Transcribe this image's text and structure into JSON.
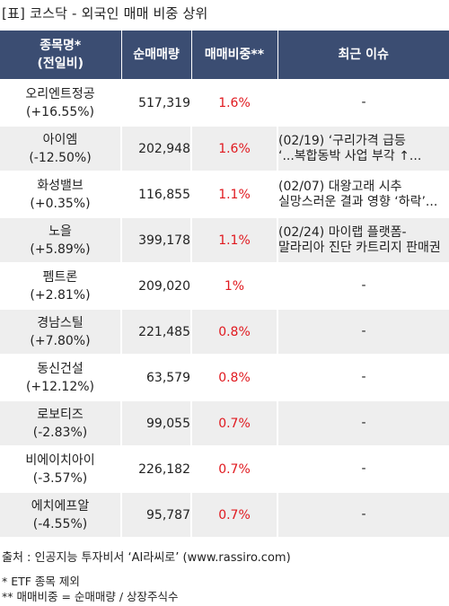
{
  "title": "[표] 코스닥 - 외국인 매매 비중 상위",
  "headers": {
    "name_line1": "종목명*",
    "name_line2": "(전일비)",
    "volume": "순매매량",
    "ratio": "매매비중**",
    "issue": "최근 이슈"
  },
  "rows": [
    {
      "name": "오리엔트정공",
      "change": "(+16.55%)",
      "volume": "517,319",
      "ratio": "1.6%",
      "issue": [
        "-"
      ]
    },
    {
      "name": "아이엠",
      "change": "(-12.50%)",
      "volume": "202,948",
      "ratio": "1.6%",
      "issue": [
        "(02/19) ‘구리가격 급등",
        "‘...복합동박 사업 부각 ↑..."
      ]
    },
    {
      "name": "화성밸브",
      "change": "(+0.35%)",
      "volume": "116,855",
      "ratio": "1.1%",
      "issue": [
        "(02/07) 대왕고래 시추",
        "실망스러운 결과 영향 ‘하락’..."
      ]
    },
    {
      "name": "노을",
      "change": "(+5.89%)",
      "volume": "399,178",
      "ratio": "1.1%",
      "issue": [
        "(02/24) 마이랩 플랫폼-",
        "말라리아 진단 카트리지 판매권"
      ]
    },
    {
      "name": "펨트론",
      "change": "(+2.81%)",
      "volume": "209,020",
      "ratio": "1%",
      "issue": [
        "-"
      ]
    },
    {
      "name": "경남스틸",
      "change": "(+7.80%)",
      "volume": "221,485",
      "ratio": "0.8%",
      "issue": [
        "-"
      ]
    },
    {
      "name": "동신건설",
      "change": "(+12.12%)",
      "volume": "63,579",
      "ratio": "0.8%",
      "issue": [
        "-"
      ]
    },
    {
      "name": "로보티즈",
      "change": "(-2.83%)",
      "volume": "99,055",
      "ratio": "0.7%",
      "issue": [
        "-"
      ]
    },
    {
      "name": "비에이치아이",
      "change": "(-3.57%)",
      "volume": "226,182",
      "ratio": "0.7%",
      "issue": [
        "-"
      ]
    },
    {
      "name": "에치에프알",
      "change": "(-4.55%)",
      "volume": "95,787",
      "ratio": "0.7%",
      "issue": [
        "-"
      ]
    }
  ],
  "footer": {
    "source": "출처 : 인공지능 투자비서 ‘AI라씨로’ (www.rassiro.com)",
    "note1": "* ETF 종목 제외",
    "note2": "** 매매비중 = 순매매량 / 상장주식수"
  },
  "colors": {
    "header_bg": "#3b4d72",
    "ratio_text": "#e0191f",
    "stripe": "#eeeeee"
  }
}
